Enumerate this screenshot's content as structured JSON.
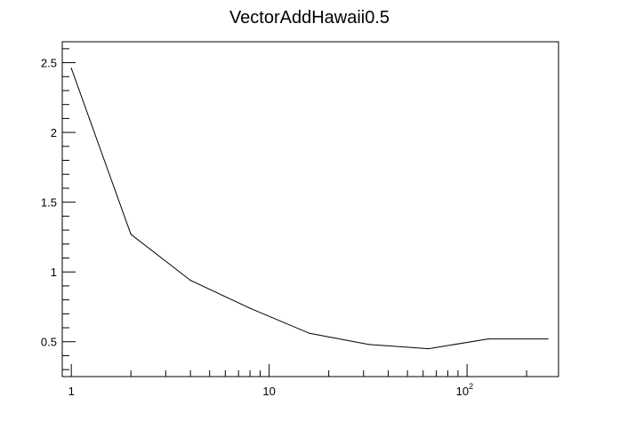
{
  "chart_data": {
    "type": "line",
    "title": "VectorAddHawaii0.5",
    "xlabel": "",
    "ylabel": "",
    "x_scale": "log",
    "xlim": [
      0.9,
      290
    ],
    "ylim": [
      0.25,
      2.65
    ],
    "grid": false,
    "x_ticks": [
      {
        "value": 1,
        "base": "1",
        "exp": ""
      },
      {
        "value": 10,
        "base": "10",
        "exp": ""
      },
      {
        "value": 100,
        "base": "10",
        "exp": "2"
      }
    ],
    "y_ticks": [
      {
        "value": 0.5,
        "label": "0.5"
      },
      {
        "value": 1,
        "label": "1"
      },
      {
        "value": 1.5,
        "label": "1.5"
      },
      {
        "value": 2,
        "label": "2"
      },
      {
        "value": 2.5,
        "label": "2.5"
      }
    ],
    "series": [
      {
        "color": "#000000",
        "x": [
          1,
          2,
          4,
          8,
          16,
          32,
          64,
          128,
          256
        ],
        "y": [
          2.46,
          1.27,
          0.94,
          0.74,
          0.56,
          0.48,
          0.45,
          0.52,
          0.52
        ]
      }
    ]
  }
}
